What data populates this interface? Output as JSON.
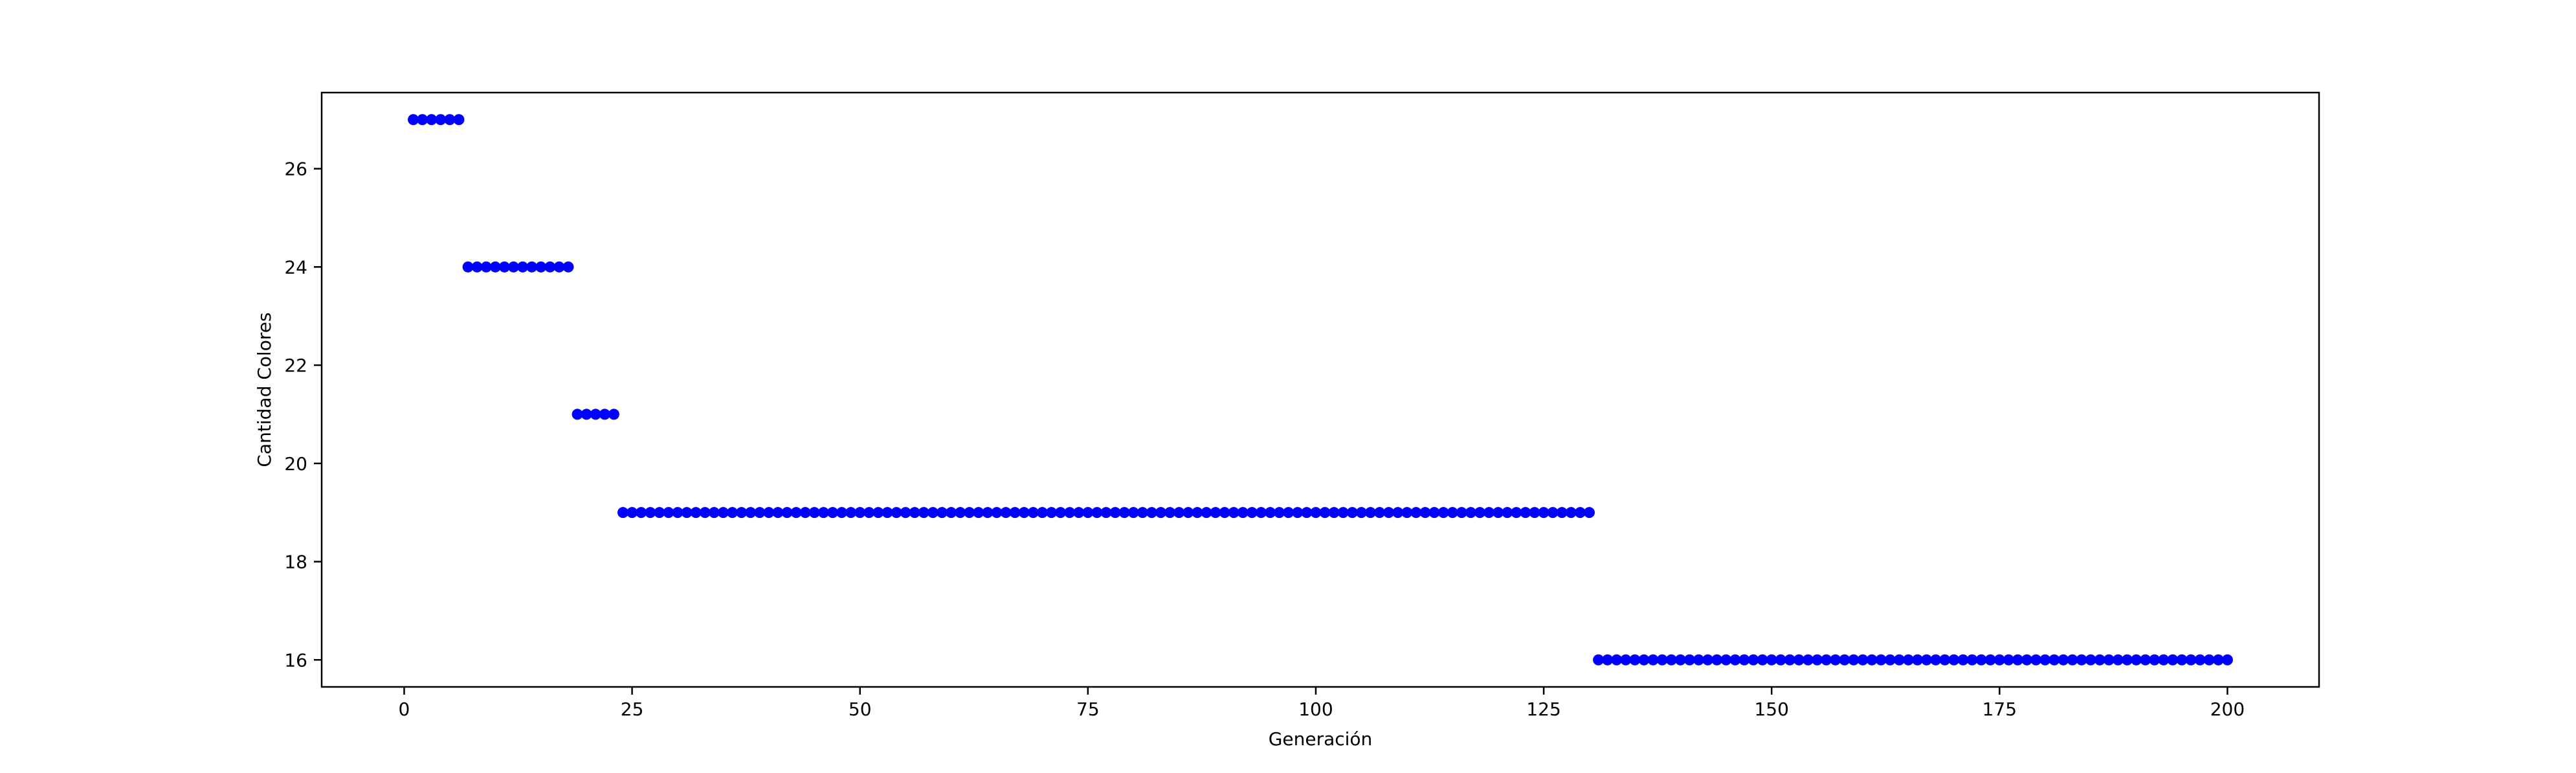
{
  "chart_data": {
    "type": "scatter",
    "title": "",
    "xlabel": "Generación",
    "ylabel": "Cantidad Colores",
    "xlim": [
      -9.05,
      210.05
    ],
    "ylim": [
      15.45,
      27.55
    ],
    "xticks": [
      0,
      25,
      50,
      75,
      100,
      125,
      150,
      175,
      200
    ],
    "yticks": [
      16,
      18,
      20,
      22,
      24,
      26
    ],
    "grid": false,
    "legend": "none",
    "marker_color": "#0000ff",
    "series": [
      {
        "segments": [
          {
            "x_start": 1,
            "x_end": 6,
            "y": 27
          },
          {
            "x_start": 7,
            "x_end": 18,
            "y": 24
          },
          {
            "x_start": 19,
            "x_end": 23,
            "y": 21
          },
          {
            "x_start": 24,
            "x_end": 130,
            "y": 19
          },
          {
            "x_start": 131,
            "x_end": 200,
            "y": 16
          }
        ]
      }
    ]
  }
}
